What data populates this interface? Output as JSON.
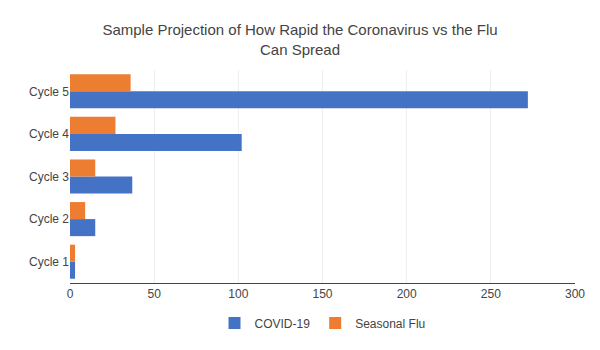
{
  "chart_data": {
    "type": "bar",
    "orientation": "horizontal",
    "title": "Sample Projection of How Rapid the Coronavirus vs the Flu\nCan Spread",
    "categories": [
      "Cycle 1",
      "Cycle 2",
      "Cycle 3",
      "Cycle 4",
      "Cycle 5"
    ],
    "series": [
      {
        "name": "COVID-19",
        "color": "#4472C4",
        "values": [
          3,
          15,
          37,
          102,
          272
        ]
      },
      {
        "name": "Seasonal Flu",
        "color": "#ED7D31",
        "values": [
          3,
          9,
          15,
          27,
          36
        ]
      }
    ],
    "xlim": [
      0,
      300
    ],
    "xticks": [
      0,
      50,
      100,
      150,
      200,
      250,
      300
    ],
    "grid": true,
    "legend": "bottom"
  }
}
